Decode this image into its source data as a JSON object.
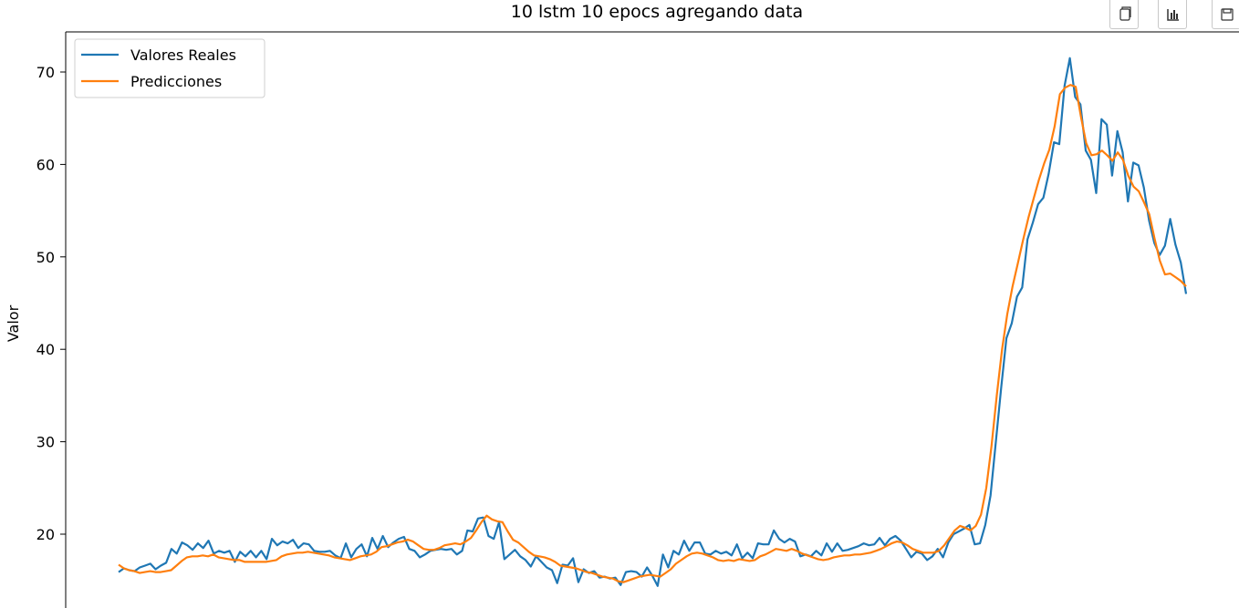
{
  "chart_data": {
    "type": "line",
    "title": "10 lstm 10 epocs agregando data",
    "xlabel": "",
    "ylabel": "Valor",
    "ylim": [
      11.3,
      74.5
    ],
    "yticks": [
      20,
      30,
      40,
      50,
      60,
      70
    ],
    "grid": false,
    "legend": "top-left",
    "series": [
      {
        "name": "Valores Reales",
        "color": "#1f77b4",
        "values": [
          15.9,
          16.3,
          16.1,
          16.0,
          16.4,
          16.6,
          16.8,
          16.2,
          16.6,
          16.9,
          18.4,
          17.9,
          19.1,
          18.8,
          18.3,
          19.0,
          18.5,
          19.3,
          17.9,
          18.2,
          18.0,
          18.2,
          17.0,
          18.1,
          17.6,
          18.2,
          17.5,
          18.2,
          17.3,
          19.5,
          18.8,
          19.2,
          19.0,
          19.4,
          18.5,
          19.0,
          18.9,
          18.2,
          18.1,
          18.1,
          18.2,
          17.7,
          17.4,
          19.0,
          17.5,
          18.4,
          18.9,
          17.6,
          19.6,
          18.4,
          19.8,
          18.6,
          19.1,
          19.5,
          19.7,
          18.4,
          18.2,
          17.5,
          17.8,
          18.2,
          18.3,
          18.4,
          18.3,
          18.4,
          17.8,
          18.2,
          20.4,
          20.3,
          21.7,
          21.8,
          19.8,
          19.5,
          21.3,
          17.3,
          17.8,
          18.3,
          17.6,
          17.2,
          16.5,
          17.6,
          17.0,
          16.4,
          16.1,
          14.7,
          16.7,
          16.6,
          17.4,
          14.8,
          16.2,
          15.8,
          16.0,
          15.3,
          15.4,
          15.2,
          15.3,
          14.5,
          15.9,
          16.0,
          15.9,
          15.4,
          16.4,
          15.5,
          14.4,
          17.8,
          16.4,
          18.2,
          17.8,
          19.3,
          18.2,
          19.1,
          19.1,
          17.9,
          17.8,
          18.2,
          17.9,
          18.1,
          17.7,
          18.9,
          17.4,
          18.0,
          17.4,
          19.0,
          18.9,
          18.9,
          20.4,
          19.5,
          19.1,
          19.5,
          19.2,
          17.6,
          17.8,
          17.6,
          18.2,
          17.7,
          19.0,
          18.1,
          19.0,
          18.2,
          18.3,
          18.5,
          18.7,
          19.0,
          18.8,
          18.9,
          19.6,
          18.8,
          19.5,
          19.8,
          19.3,
          18.4,
          17.5,
          18.1,
          17.9,
          17.2,
          17.6,
          18.4,
          17.5,
          19.1,
          20.0,
          20.3,
          20.6,
          21.0,
          18.9,
          19.0,
          21.0,
          24.2,
          30.0,
          35.8,
          41.2,
          42.8,
          45.7,
          46.7,
          51.9,
          53.7,
          55.7,
          56.4,
          59.0,
          62.4,
          62.2,
          68.5,
          71.5,
          67.3,
          66.5,
          61.5,
          60.5,
          56.9,
          64.9,
          64.3,
          58.8,
          63.6,
          61.3,
          56.0,
          60.2,
          59.9,
          57.5,
          53.9,
          51.5,
          50.2,
          51.2,
          54.1,
          51.3,
          49.4,
          46.0
        ]
      },
      {
        "name": "Predicciones",
        "color": "#ff7f0e",
        "values": [
          16.7,
          16.3,
          16.1,
          16.0,
          15.8,
          15.9,
          16.0,
          15.9,
          15.9,
          16.0,
          16.1,
          16.6,
          17.1,
          17.5,
          17.6,
          17.6,
          17.7,
          17.6,
          17.8,
          17.5,
          17.4,
          17.3,
          17.2,
          17.2,
          17.0,
          17.0,
          17.0,
          17.0,
          17.0,
          17.1,
          17.2,
          17.6,
          17.8,
          17.9,
          18.0,
          18.0,
          18.1,
          18.0,
          17.9,
          17.8,
          17.7,
          17.5,
          17.4,
          17.3,
          17.2,
          17.4,
          17.6,
          17.7,
          17.8,
          18.1,
          18.6,
          18.7,
          18.9,
          19.1,
          19.2,
          19.4,
          19.2,
          18.8,
          18.4,
          18.3,
          18.3,
          18.5,
          18.8,
          18.9,
          19.0,
          18.9,
          19.2,
          19.6,
          20.4,
          21.3,
          22.0,
          21.6,
          21.4,
          21.3,
          20.3,
          19.4,
          19.1,
          18.6,
          18.1,
          17.7,
          17.6,
          17.5,
          17.3,
          17.0,
          16.6,
          16.5,
          16.4,
          16.3,
          16.1,
          15.9,
          15.8,
          15.6,
          15.4,
          15.3,
          15.2,
          14.9,
          14.8,
          15.0,
          15.2,
          15.4,
          15.5,
          15.6,
          15.5,
          15.4,
          15.8,
          16.2,
          16.8,
          17.2,
          17.6,
          17.9,
          18.0,
          17.9,
          17.7,
          17.5,
          17.2,
          17.1,
          17.2,
          17.1,
          17.3,
          17.2,
          17.1,
          17.2,
          17.6,
          17.8,
          18.1,
          18.4,
          18.3,
          18.2,
          18.4,
          18.2,
          17.9,
          17.7,
          17.5,
          17.3,
          17.2,
          17.3,
          17.5,
          17.6,
          17.7,
          17.7,
          17.8,
          17.8,
          17.9,
          18.0,
          18.2,
          18.4,
          18.7,
          19.0,
          19.2,
          19.1,
          18.8,
          18.4,
          18.2,
          18.0,
          18.0,
          18.0,
          18.2,
          18.8,
          19.6,
          20.4,
          20.9,
          20.7,
          20.4,
          20.9,
          22.1,
          25.0,
          29.5,
          35.0,
          40.0,
          43.8,
          46.8,
          49.3,
          51.8,
          54.2,
          56.3,
          58.3,
          60.1,
          61.6,
          64.1,
          67.6,
          68.3,
          68.6,
          68.4,
          65.2,
          62.3,
          61.0,
          61.1,
          61.5,
          61.0,
          60.4,
          61.3,
          60.5,
          58.8,
          57.6,
          57.1,
          55.9,
          54.6,
          52.0,
          49.6,
          48.1,
          48.2,
          47.8,
          47.4,
          46.8
        ]
      }
    ]
  },
  "toolbar": {
    "copy_icon": "copy-icon",
    "chart_icon": "bar-chart-icon",
    "save_icon": "save-icon"
  }
}
